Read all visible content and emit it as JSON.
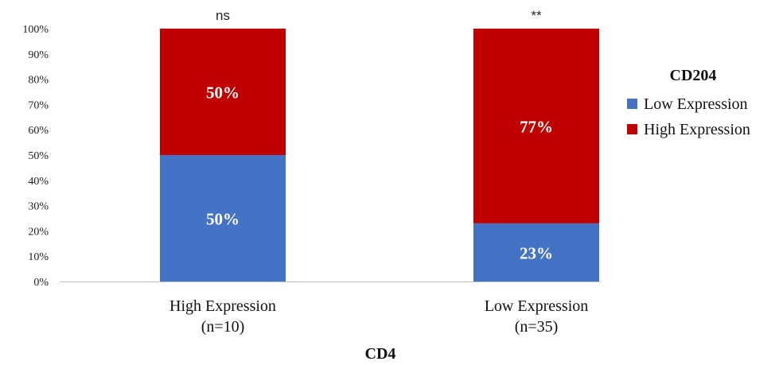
{
  "chart_data": {
    "type": "bar",
    "stacked": true,
    "categories": [
      "High Expression",
      "Low Expression"
    ],
    "category_sublabels": [
      "(n=10)",
      "(n=35)"
    ],
    "series": [
      {
        "name": "Low Expression",
        "values": [
          50,
          23
        ],
        "color": "#4472c4",
        "labels": [
          "50%",
          "23%"
        ]
      },
      {
        "name": "High Expression",
        "values": [
          50,
          77
        ],
        "color": "#c00000",
        "labels": [
          "50%",
          "77%"
        ]
      }
    ],
    "significance": [
      "ns",
      "**"
    ],
    "xlabel": "CD4",
    "ylabel": "",
    "ylim": [
      0,
      100
    ],
    "yticks": [
      "0%",
      "10%",
      "20%",
      "30%",
      "40%",
      "50%",
      "60%",
      "70%",
      "80%",
      "90%",
      "100%"
    ],
    "legend": {
      "title": "CD204",
      "position": "right"
    },
    "grid": false
  }
}
